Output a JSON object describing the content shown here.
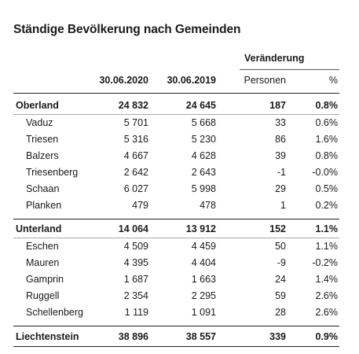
{
  "title": "Ständige Bevölkerung nach Gemeinden",
  "header": {
    "group": "Veränderung",
    "col_a": "30.06.2020",
    "col_b": "30.06.2019",
    "col_p": "Personen",
    "col_pct": "%"
  },
  "oberland": {
    "name": "Oberland",
    "a": "24 832",
    "b": "24 645",
    "p": "187",
    "pct": "0.8%"
  },
  "oberland_rows": [
    {
      "name": "Vaduz",
      "a": "5 701",
      "b": "5 668",
      "p": "33",
      "pct": "0.6%"
    },
    {
      "name": "Triesen",
      "a": "5 316",
      "b": "5 230",
      "p": "86",
      "pct": "1.6%"
    },
    {
      "name": "Balzers",
      "a": "4 667",
      "b": "4 628",
      "p": "39",
      "pct": "0.8%"
    },
    {
      "name": "Triesenberg",
      "a": "2 642",
      "b": "2 643",
      "p": "-1",
      "pct": "-0.0%"
    },
    {
      "name": "Schaan",
      "a": "6 027",
      "b": "5 998",
      "p": "29",
      "pct": "0.5%"
    },
    {
      "name": "Planken",
      "a": "479",
      "b": "478",
      "p": "1",
      "pct": "0.2%"
    }
  ],
  "unterland": {
    "name": "Unterland",
    "a": "14 064",
    "b": "13 912",
    "p": "152",
    "pct": "1.1%"
  },
  "unterland_rows": [
    {
      "name": "Eschen",
      "a": "4 509",
      "b": "4 459",
      "p": "50",
      "pct": "1.1%"
    },
    {
      "name": "Mauren",
      "a": "4 395",
      "b": "4 404",
      "p": "-9",
      "pct": "-0.2%"
    },
    {
      "name": "Gamprin",
      "a": "1 687",
      "b": "1 663",
      "p": "24",
      "pct": "1.4%"
    },
    {
      "name": "Ruggell",
      "a": "2 354",
      "b": "2 295",
      "p": "59",
      "pct": "2.6%"
    },
    {
      "name": "Schellenberg",
      "a": "1 119",
      "b": "1 091",
      "p": "28",
      "pct": "2.6%"
    }
  ],
  "total": {
    "name": "Liechtenstein",
    "a": "38 896",
    "b": "38 557",
    "p": "339",
    "pct": "0.9%"
  }
}
